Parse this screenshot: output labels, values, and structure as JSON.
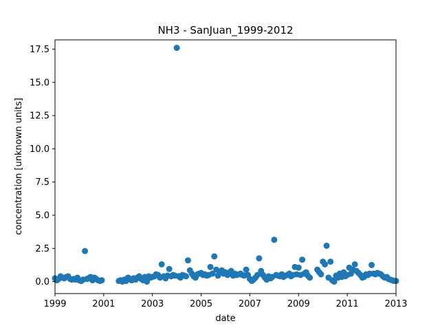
{
  "chart_data": {
    "type": "scatter",
    "title": "NH3 - SanJuan_1999-2012",
    "xlabel": "date",
    "ylabel": "concentration [unknown units]",
    "xlim": [
      1999.0,
      2013.0
    ],
    "ylim": [
      -0.9,
      18.2
    ],
    "x_ticks": [
      {
        "value": 1999,
        "label": "1999"
      },
      {
        "value": 2001,
        "label": "2001"
      },
      {
        "value": 2003,
        "label": "2003"
      },
      {
        "value": 2005,
        "label": "2005"
      },
      {
        "value": 2007,
        "label": "2007"
      },
      {
        "value": 2009,
        "label": "2009"
      },
      {
        "value": 2011,
        "label": "2011"
      },
      {
        "value": 2013,
        "label": "2013"
      }
    ],
    "y_ticks": [
      {
        "value": 0.0,
        "label": "0.0"
      },
      {
        "value": 2.5,
        "label": "2.5"
      },
      {
        "value": 5.0,
        "label": "5.0"
      },
      {
        "value": 7.5,
        "label": "7.5"
      },
      {
        "value": 10.0,
        "label": "10.0"
      },
      {
        "value": 12.5,
        "label": "12.5"
      },
      {
        "value": 15.0,
        "label": "15.0"
      },
      {
        "value": 17.5,
        "label": "17.5"
      }
    ],
    "grid": false,
    "legend": "none",
    "marker_color": "#1f77b4",
    "series": [
      {
        "x": [
          1999.0,
          1999.08,
          1999.15,
          1999.23,
          1999.31,
          1999.38,
          1999.46,
          1999.54,
          1999.62,
          1999.69,
          1999.77,
          1999.85,
          1999.92,
          2000.0,
          2000.08,
          2000.15,
          2000.23,
          2000.31,
          2000.38,
          2000.46,
          2000.54,
          2000.62,
          2000.69,
          2000.77,
          2000.85,
          2000.92,
          2001.62,
          2001.69,
          2001.77,
          2001.85,
          2001.92,
          2002.0,
          2002.08,
          2002.15,
          2002.23,
          2002.31,
          2002.38,
          2002.46,
          2002.54,
          2002.62,
          2002.69,
          2002.77,
          2002.85,
          2002.92,
          2003.0,
          2003.08,
          2003.15,
          2003.23,
          2003.31,
          2003.38,
          2003.46,
          2003.54,
          2003.62,
          2003.69,
          2003.77,
          2003.85,
          2003.92,
          2004.0,
          2004.08,
          2004.15,
          2004.23,
          2004.31,
          2004.38,
          2004.46,
          2004.54,
          2004.62,
          2004.69,
          2004.77,
          2004.85,
          2004.92,
          2005.0,
          2005.08,
          2005.15,
          2005.23,
          2005.31,
          2005.38,
          2005.46,
          2005.54,
          2005.62,
          2005.69,
          2005.77,
          2005.85,
          2005.92,
          2006.0,
          2006.08,
          2006.15,
          2006.23,
          2006.31,
          2006.38,
          2006.46,
          2006.54,
          2006.62,
          2006.69,
          2006.77,
          2006.85,
          2006.92,
          2007.0,
          2007.08,
          2007.15,
          2007.23,
          2007.31,
          2007.38,
          2007.46,
          2007.54,
          2007.62,
          2007.69,
          2007.77,
          2007.85,
          2007.92,
          2008.0,
          2008.08,
          2008.15,
          2008.23,
          2008.31,
          2008.38,
          2008.46,
          2008.54,
          2008.62,
          2008.69,
          2008.77,
          2008.85,
          2008.92,
          2009.0,
          2009.08,
          2009.15,
          2009.23,
          2009.31,
          2009.38,
          2009.46,
          2009.77,
          2009.85,
          2009.92,
          2010.0,
          2010.08,
          2010.15,
          2010.23,
          2010.31,
          2010.38,
          2010.46,
          2010.54,
          2010.62,
          2010.69,
          2010.77,
          2010.85,
          2010.92,
          2011.0,
          2011.08,
          2011.15,
          2011.23,
          2011.31,
          2011.38,
          2011.46,
          2011.54,
          2011.62,
          2011.69,
          2011.77,
          2011.85,
          2011.92,
          2012.0,
          2012.08,
          2012.15,
          2012.23,
          2012.31,
          2012.38,
          2012.46,
          2012.54,
          2012.62,
          2012.69,
          2012.77,
          2012.85,
          2012.92,
          2013.0
        ],
        "y": [
          0.25,
          0.1,
          0.2,
          0.4,
          0.3,
          0.25,
          0.35,
          0.4,
          0.2,
          0.15,
          0.2,
          0.15,
          0.3,
          0.1,
          0.05,
          0.15,
          2.3,
          0.2,
          0.25,
          0.35,
          0.1,
          0.3,
          0.2,
          0.1,
          0.05,
          0.1,
          0.05,
          0.1,
          0.0,
          0.15,
          0.05,
          0.3,
          0.2,
          0.1,
          0.25,
          0.15,
          0.3,
          0.4,
          0.2,
          0.1,
          0.35,
          0.0,
          0.4,
          0.3,
          0.35,
          0.4,
          0.55,
          0.5,
          0.3,
          1.3,
          0.4,
          0.25,
          0.45,
          0.95,
          0.4,
          0.5,
          0.45,
          17.6,
          0.4,
          0.3,
          0.5,
          0.45,
          0.4,
          1.6,
          0.85,
          0.6,
          0.4,
          0.3,
          0.55,
          0.6,
          0.65,
          0.5,
          0.55,
          0.45,
          0.5,
          1.1,
          0.6,
          1.9,
          0.9,
          0.45,
          0.7,
          0.85,
          0.6,
          0.7,
          0.5,
          0.65,
          0.8,
          0.45,
          0.6,
          0.5,
          0.55,
          0.6,
          0.5,
          0.45,
          0.9,
          0.5,
          0.2,
          0.05,
          0.15,
          0.3,
          0.5,
          1.75,
          0.8,
          0.5,
          0.3,
          0.15,
          0.4,
          0.25,
          0.35,
          3.15,
          0.5,
          0.45,
          0.4,
          0.55,
          0.35,
          0.45,
          0.5,
          0.6,
          0.4,
          0.5,
          1.1,
          0.55,
          1.05,
          0.5,
          1.65,
          0.6,
          0.7,
          0.45,
          0.3,
          0.9,
          0.7,
          0.55,
          1.5,
          1.3,
          2.7,
          0.3,
          1.5,
          0.1,
          0.0,
          0.45,
          0.3,
          0.6,
          0.35,
          0.7,
          0.4,
          0.5,
          1.05,
          0.6,
          0.9,
          1.3,
          0.8,
          0.65,
          0.5,
          0.3,
          0.35,
          0.55,
          0.5,
          0.6,
          1.25,
          0.6,
          0.55,
          0.65,
          0.6,
          0.55,
          0.4,
          0.3,
          0.35,
          0.2,
          0.15,
          0.1,
          0.05,
          0.05
        ]
      }
    ]
  }
}
